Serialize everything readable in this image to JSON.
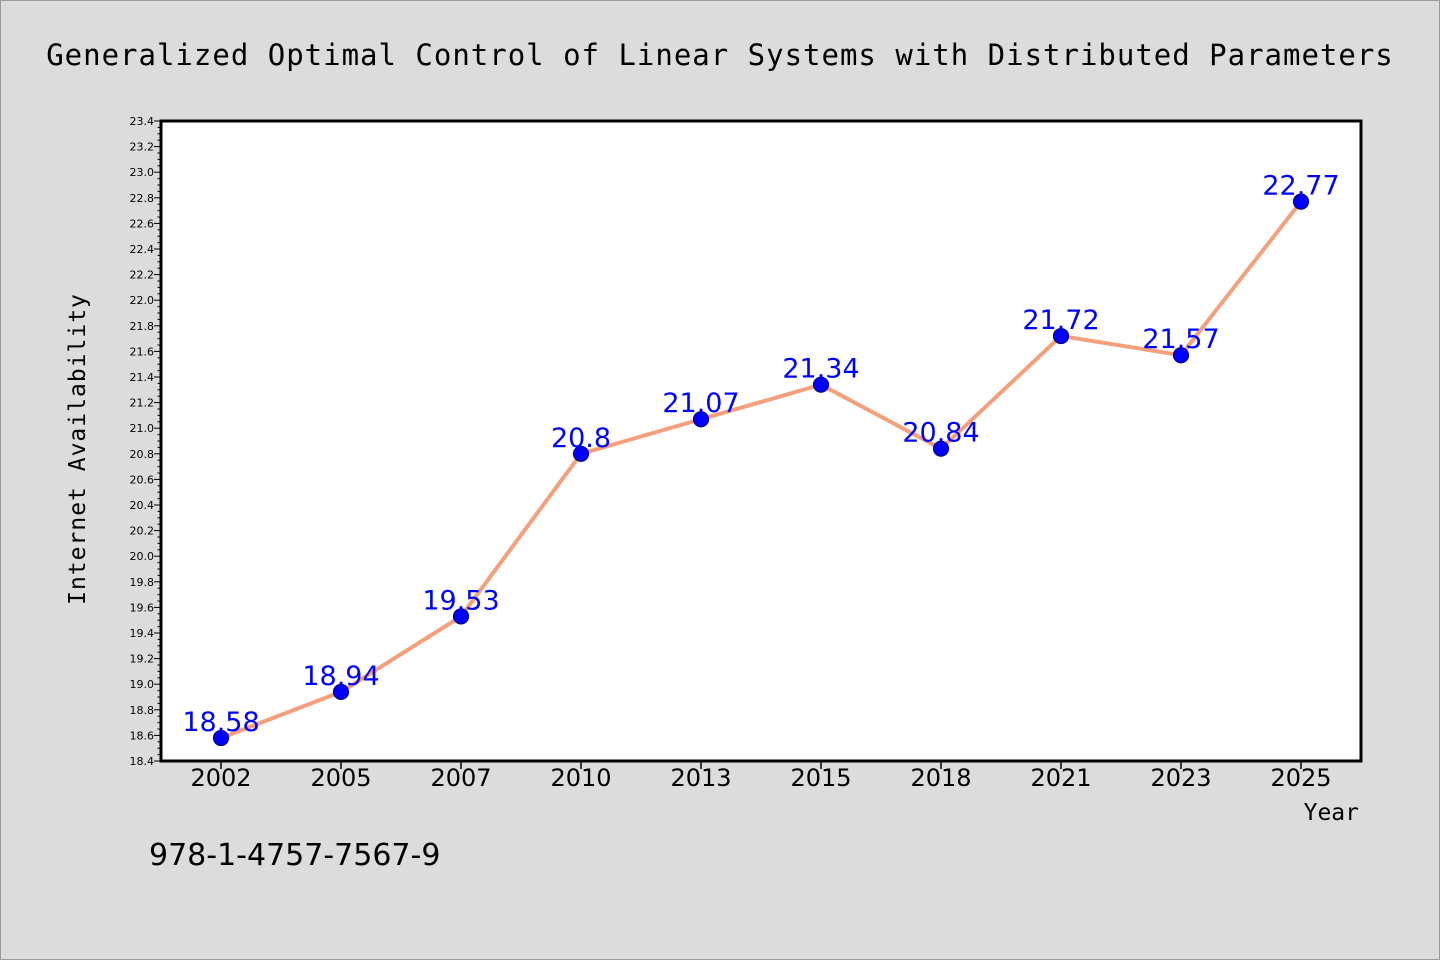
{
  "chart_data": {
    "type": "line",
    "title": "Generalized Optimal Control of Linear Systems with Distributed Parameters",
    "xlabel": "Year",
    "ylabel": "Internet Availability",
    "categories": [
      "2002",
      "2005",
      "2007",
      "2010",
      "2013",
      "2015",
      "2018",
      "2021",
      "2023",
      "2025"
    ],
    "series": [
      {
        "values": [
          18.58,
          18.94,
          19.53,
          20.8,
          21.07,
          21.34,
          20.84,
          21.72,
          21.57,
          22.77
        ],
        "labels": [
          "18.58",
          "18.94",
          "19.53",
          "20.8",
          "21.07",
          "21.34",
          "20.84",
          "21.72",
          "21.57",
          "22.77"
        ]
      }
    ],
    "ylim": [
      18.4,
      23.4
    ],
    "yticks": [
      "18.4",
      "18.6",
      "18.8",
      "19.0",
      "19.2",
      "19.4",
      "19.6",
      "19.8",
      "20.0",
      "20.2",
      "20.4",
      "20.6",
      "20.8",
      "21.0",
      "21.2",
      "21.4",
      "21.6",
      "21.8",
      "22.0",
      "22.2",
      "22.4",
      "22.6",
      "22.8",
      "23.0",
      "23.2",
      "23.4"
    ],
    "grid": false,
    "legend": "none",
    "colors": {
      "line": "#f4a07c",
      "marker": "#0000ff",
      "marker_edge": "#000080",
      "data_label": "#0000ff",
      "plot_background": "#ffffff",
      "figure_background": "#dcdcdc"
    }
  },
  "footer": {
    "isbn": "978-1-4757-7567-9"
  }
}
